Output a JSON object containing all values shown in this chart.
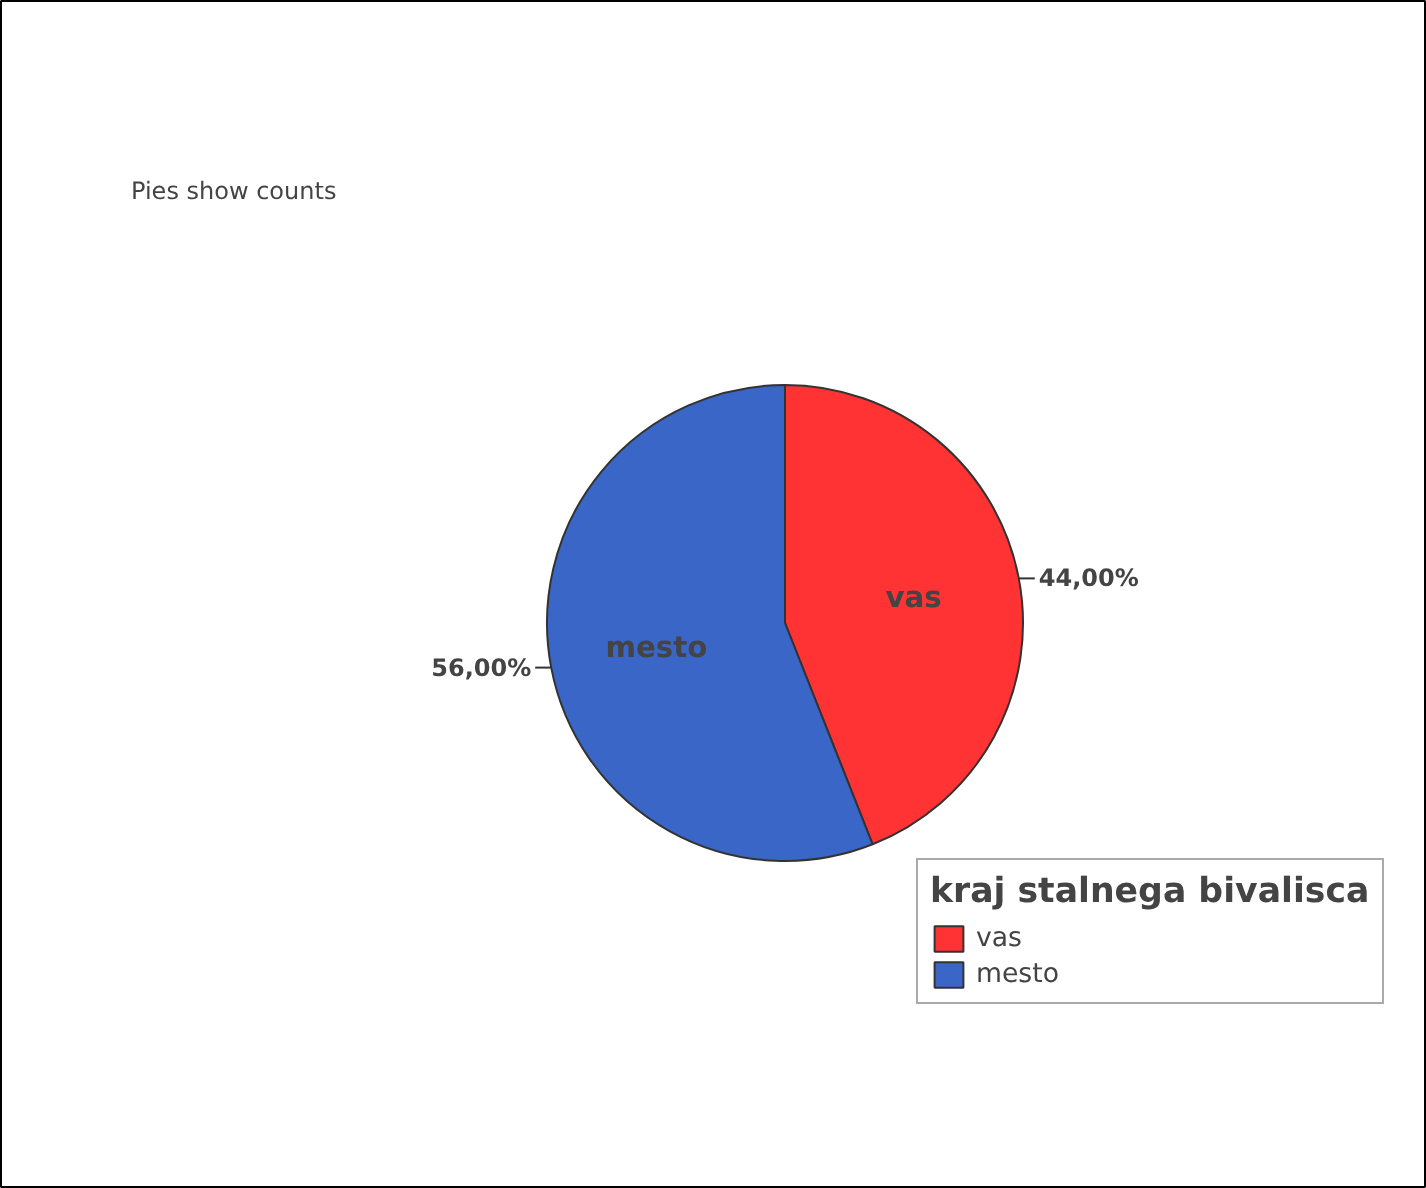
{
  "chart_data": {
    "type": "pie",
    "legend_title": "kraj stalnega bivalisca",
    "categories": [
      "vas",
      "mesto"
    ],
    "values": [
      44,
      56
    ],
    "colors": [
      "#ff3333",
      "#3a66c8"
    ],
    "value_labels": [
      "44,00%",
      "56,00%"
    ],
    "annotations": [
      "Pies show counts"
    ],
    "legend": "bottom right"
  }
}
